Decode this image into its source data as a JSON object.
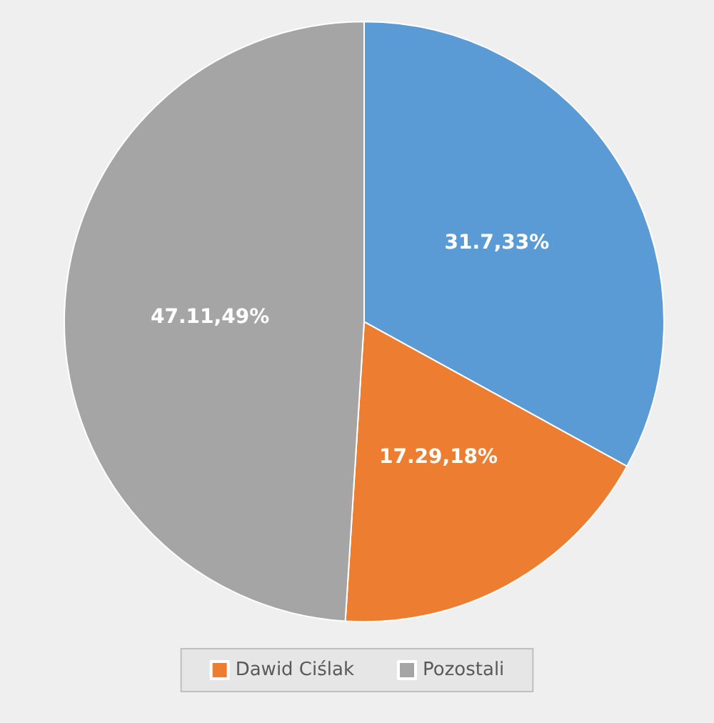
{
  "chart_data": {
    "type": "pie",
    "categories": [
      null,
      "Dawid Ciślak",
      "Pozostali"
    ],
    "values": [
      33,
      18,
      49
    ],
    "colors": [
      "#5b9bd5",
      "#ed7d31",
      "#a5a5a5"
    ],
    "value_labels": [
      "31.7,33%",
      "17.29,18%",
      "47.11,49%"
    ],
    "legend": "bottom"
  }
}
